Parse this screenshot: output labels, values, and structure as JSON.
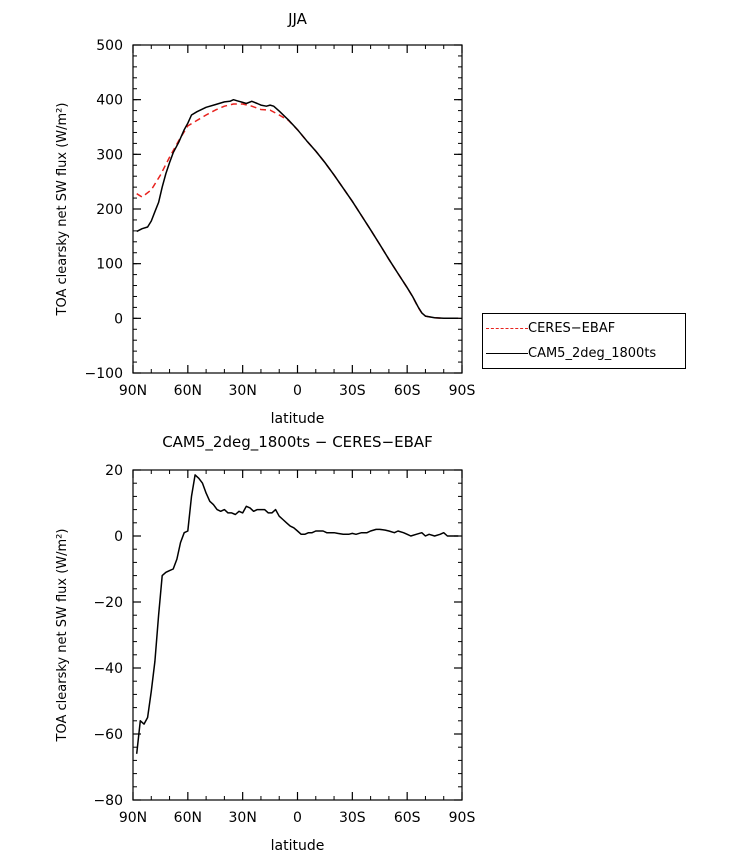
{
  "colors": {
    "ceres": "#e8221e",
    "cam5": "#000000"
  },
  "chart_data": [
    {
      "type": "line",
      "title": "JJA",
      "xlabel": "latitude",
      "ylabel": "TOA clearsky net SW flux (W/m²)",
      "xlim": [
        90,
        -90
      ],
      "ylim": [
        -100,
        500
      ],
      "xticks": [
        90,
        60,
        30,
        0,
        -30,
        -60,
        -90
      ],
      "xtick_labels": [
        "90N",
        "60N",
        "30N",
        "0",
        "30S",
        "60S",
        "90S"
      ],
      "yticks": [
        -100,
        0,
        100,
        200,
        300,
        400,
        500
      ],
      "ytick_labels": [
        "−100",
        "0",
        "100",
        "200",
        "300",
        "400",
        "500"
      ],
      "legend": {
        "placement": "right",
        "entries": [
          "CERES−EBAF",
          "CAM5_2deg_1800ts"
        ]
      },
      "series": [
        {
          "name": "CERES−EBAF",
          "style": "dashed",
          "color": "#e8221e",
          "x": [
            88,
            85,
            80,
            75,
            70,
            65,
            60,
            55,
            50,
            45,
            40,
            35,
            30,
            25,
            20,
            15,
            10,
            5,
            0,
            -5,
            -10,
            -15,
            -20,
            -25,
            -30,
            -35,
            -40,
            -45,
            -50,
            -55,
            -60,
            -63,
            -66,
            -68,
            -70,
            -75,
            -80,
            -85,
            -88
          ],
          "y": [
            228,
            222,
            235,
            262,
            295,
            325,
            352,
            362,
            372,
            381,
            388,
            392,
            392,
            388,
            382,
            381,
            372,
            362,
            345,
            325,
            306,
            285,
            262,
            238,
            214,
            188,
            162,
            135,
            108,
            82,
            56,
            40,
            20,
            10,
            4,
            1,
            0,
            0,
            0
          ]
        },
        {
          "name": "CAM5_2deg_1800ts",
          "style": "solid",
          "color": "#000000",
          "x": [
            88,
            85,
            82,
            80,
            78,
            76,
            74,
            72,
            70,
            68,
            65,
            62,
            60,
            58,
            55,
            50,
            45,
            40,
            37,
            35,
            33,
            30,
            28,
            25,
            22,
            20,
            17,
            15,
            13,
            10,
            5,
            0,
            -5,
            -10,
            -15,
            -20,
            -25,
            -30,
            -35,
            -40,
            -45,
            -50,
            -55,
            -60,
            -63,
            -66,
            -68,
            -70,
            -75,
            -80,
            -85,
            -88
          ],
          "y": [
            159,
            164,
            167,
            178,
            195,
            212,
            240,
            265,
            285,
            303,
            322,
            345,
            357,
            372,
            378,
            386,
            391,
            396,
            397,
            400,
            398,
            395,
            393,
            397,
            393,
            390,
            388,
            390,
            388,
            379,
            363,
            345,
            325,
            306,
            285,
            262,
            238,
            214,
            188,
            162,
            135,
            108,
            82,
            56,
            40,
            21,
            10,
            4,
            1,
            0,
            0,
            0
          ]
        }
      ]
    },
    {
      "type": "line",
      "title": "CAM5_2deg_1800ts − CERES−EBAF",
      "xlabel": "latitude",
      "ylabel": "TOA clearsky net SW flux (W/m²)",
      "xlim": [
        90,
        -90
      ],
      "ylim": [
        -80,
        20
      ],
      "xticks": [
        90,
        60,
        30,
        0,
        -30,
        -60,
        -90
      ],
      "xtick_labels": [
        "90N",
        "60N",
        "30N",
        "0",
        "30S",
        "60S",
        "90S"
      ],
      "yticks": [
        -80,
        -60,
        -40,
        -20,
        0,
        20
      ],
      "ytick_labels": [
        "−80",
        "−60",
        "−40",
        "−20",
        "0",
        "20"
      ],
      "series": [
        {
          "name": "CAM5_2deg_1800ts − CERES−EBAF",
          "style": "solid",
          "color": "#000000",
          "x": [
            88,
            86,
            84,
            82,
            80,
            78,
            76,
            75,
            74,
            72,
            70,
            68,
            66,
            64,
            62,
            60,
            58,
            56,
            54,
            52,
            50,
            48,
            46,
            44,
            42,
            40,
            38,
            36,
            34,
            32,
            30,
            28,
            26,
            24,
            22,
            20,
            18,
            16,
            14,
            12,
            10,
            8,
            6,
            4,
            2,
            0,
            -2,
            -4,
            -6,
            -8,
            -10,
            -12,
            -14,
            -16,
            -18,
            -20,
            -22,
            -25,
            -28,
            -30,
            -32,
            -35,
            -38,
            -40,
            -43,
            -45,
            -48,
            -50,
            -53,
            -55,
            -58,
            -60,
            -62,
            -65,
            -68,
            -70,
            -72,
            -75,
            -78,
            -80,
            -82,
            -84,
            -86,
            -88
          ],
          "y": [
            -66,
            -56,
            -57,
            -55,
            -47,
            -38,
            -24,
            -18,
            -12,
            -11,
            -10.5,
            -10,
            -7,
            -2,
            1,
            1.5,
            12,
            18.5,
            17.5,
            16,
            13,
            10.5,
            9.5,
            8,
            7.5,
            8,
            7,
            7,
            6.5,
            7.5,
            7,
            9,
            8.5,
            7.5,
            8,
            8,
            8,
            7,
            7,
            8,
            6,
            5,
            4,
            3,
            2.5,
            1.5,
            0.5,
            0.5,
            1,
            1,
            1.5,
            1.5,
            1.5,
            1,
            1,
            1,
            0.8,
            0.5,
            0.5,
            0.8,
            0.5,
            1,
            1,
            1.5,
            2,
            2,
            1.8,
            1.5,
            1,
            1.5,
            1,
            0.5,
            0,
            0.5,
            1,
            0,
            0.5,
            0,
            0.5,
            1,
            0,
            0,
            0,
            0
          ]
        }
      ]
    }
  ]
}
